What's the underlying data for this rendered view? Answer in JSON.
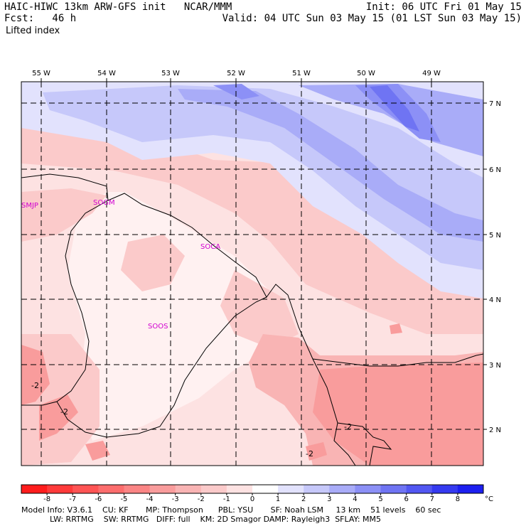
{
  "header": {
    "title": "HAIC-HIWC 13km ARW-GFS init   NCAR/MMM",
    "forecast": "Fcst:   46 h",
    "field": "Lifted index",
    "init": "Init: 06 UTC Fri 01 May 15",
    "valid": "Valid: 04 UTC Sun 03 May 15 (01 LST Sun 03 May 15)"
  },
  "map": {
    "longitude_labels": [
      "55 W",
      "54 W",
      "53 W",
      "52 W",
      "51 W",
      "50 W",
      "49 W"
    ],
    "latitude_labels": [
      "7 N",
      "6 N",
      "5 N",
      "4 N",
      "3 N",
      "2 N"
    ],
    "stations": [
      "SMJP",
      "SOGM",
      "SOCA",
      "SOOS"
    ],
    "contour_labels": [
      "-2",
      "-2",
      "-2",
      "-2"
    ],
    "colors": {
      "coast_line": "#000000",
      "grid_line": "#000000",
      "station_text": "#d000d0"
    }
  },
  "colorbar": {
    "tick_labels": [
      "-8",
      "-7",
      "-6",
      "-5",
      "-4",
      "-3",
      "-2",
      "-1",
      "0",
      "1",
      "2",
      "3",
      "4",
      "5",
      "6",
      "7",
      "8"
    ],
    "unit": "°C",
    "colors": [
      "#ff1c1c",
      "#ff3a3a",
      "#ff5454",
      "#fd6d6d",
      "#fb8585",
      "#f99c9c",
      "#f9b4b4",
      "#fbcaca",
      "#fde2e2",
      "#ffffff",
      "#e2e2fd",
      "#c6c8fa",
      "#a9acf8",
      "#8c90f6",
      "#6f74f3",
      "#5257f2",
      "#353af0",
      "#1c1ff0"
    ]
  },
  "footer": {
    "line1": "Model Info: V3.6.1    CU: KF       MP: Thompson      PBL: YSU       SF: Noah LSM     13 km    51 levels    60 sec",
    "line2": "LW: RRTMG    SW: RRTMG   DIFF: full    KM: 2D Smagor DAMP: Rayleigh3  SFLAY: MM5"
  }
}
